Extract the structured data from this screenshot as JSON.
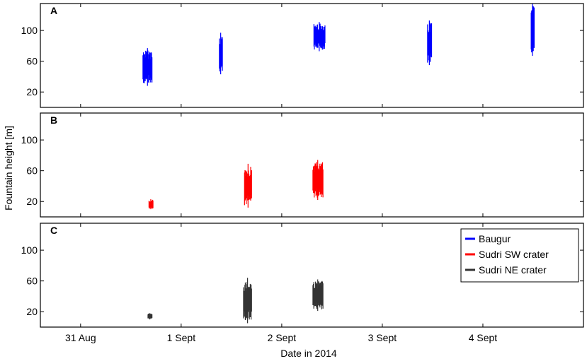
{
  "chart_data": {
    "type": "line",
    "xlabel": "Date in 2014",
    "ylabel": "Fountain height [m]",
    "x_ticks": [
      "31 Aug",
      "1 Sept",
      "2 Sept",
      "3 Sept",
      "4 Sept"
    ],
    "x_tick_days": [
      0,
      1,
      2,
      3,
      4
    ],
    "xlim_days": [
      -0.4,
      5.0
    ],
    "ylim": [
      0,
      135
    ],
    "y_ticks": [
      20,
      60,
      100
    ],
    "legend": {
      "placement": "top-right",
      "panel": "C",
      "entries": [
        {
          "name": "Baugur",
          "color": "#0000ff"
        },
        {
          "name": "Sudri SW crater",
          "color": "#ff0000"
        },
        {
          "name": "Sudri NE crater",
          "color": "#333333"
        }
      ]
    },
    "panels": [
      {
        "label": "A",
        "series": "Baugur",
        "color": "#0000ff",
        "episodes": [
          {
            "x_start": 0.62,
            "x_end": 0.71,
            "y_min": 28,
            "y_max": 77
          },
          {
            "x_start": 1.38,
            "x_end": 1.41,
            "y_min": 43,
            "y_max": 97
          },
          {
            "x_start": 2.32,
            "x_end": 2.43,
            "y_min": 73,
            "y_max": 111
          },
          {
            "x_start": 3.45,
            "x_end": 3.49,
            "y_min": 55,
            "y_max": 113
          },
          {
            "x_start": 4.48,
            "x_end": 4.51,
            "y_min": 67,
            "y_max": 135
          }
        ]
      },
      {
        "label": "B",
        "series": "Sudri SW crater",
        "color": "#ff0000",
        "episodes": [
          {
            "x_start": 0.68,
            "x_end": 0.72,
            "y_min": 10,
            "y_max": 23
          },
          {
            "x_start": 1.63,
            "x_end": 1.7,
            "y_min": 12,
            "y_max": 69
          },
          {
            "x_start": 2.31,
            "x_end": 2.41,
            "y_min": 22,
            "y_max": 74
          }
        ]
      },
      {
        "label": "C",
        "series": "Sudri NE crater",
        "color": "#333333",
        "episodes": [
          {
            "x_start": 0.67,
            "x_end": 0.71,
            "y_min": 10,
            "y_max": 18
          },
          {
            "x_start": 1.62,
            "x_end": 1.7,
            "y_min": 5,
            "y_max": 64
          },
          {
            "x_start": 2.31,
            "x_end": 2.41,
            "y_min": 21,
            "y_max": 62
          }
        ]
      }
    ]
  }
}
